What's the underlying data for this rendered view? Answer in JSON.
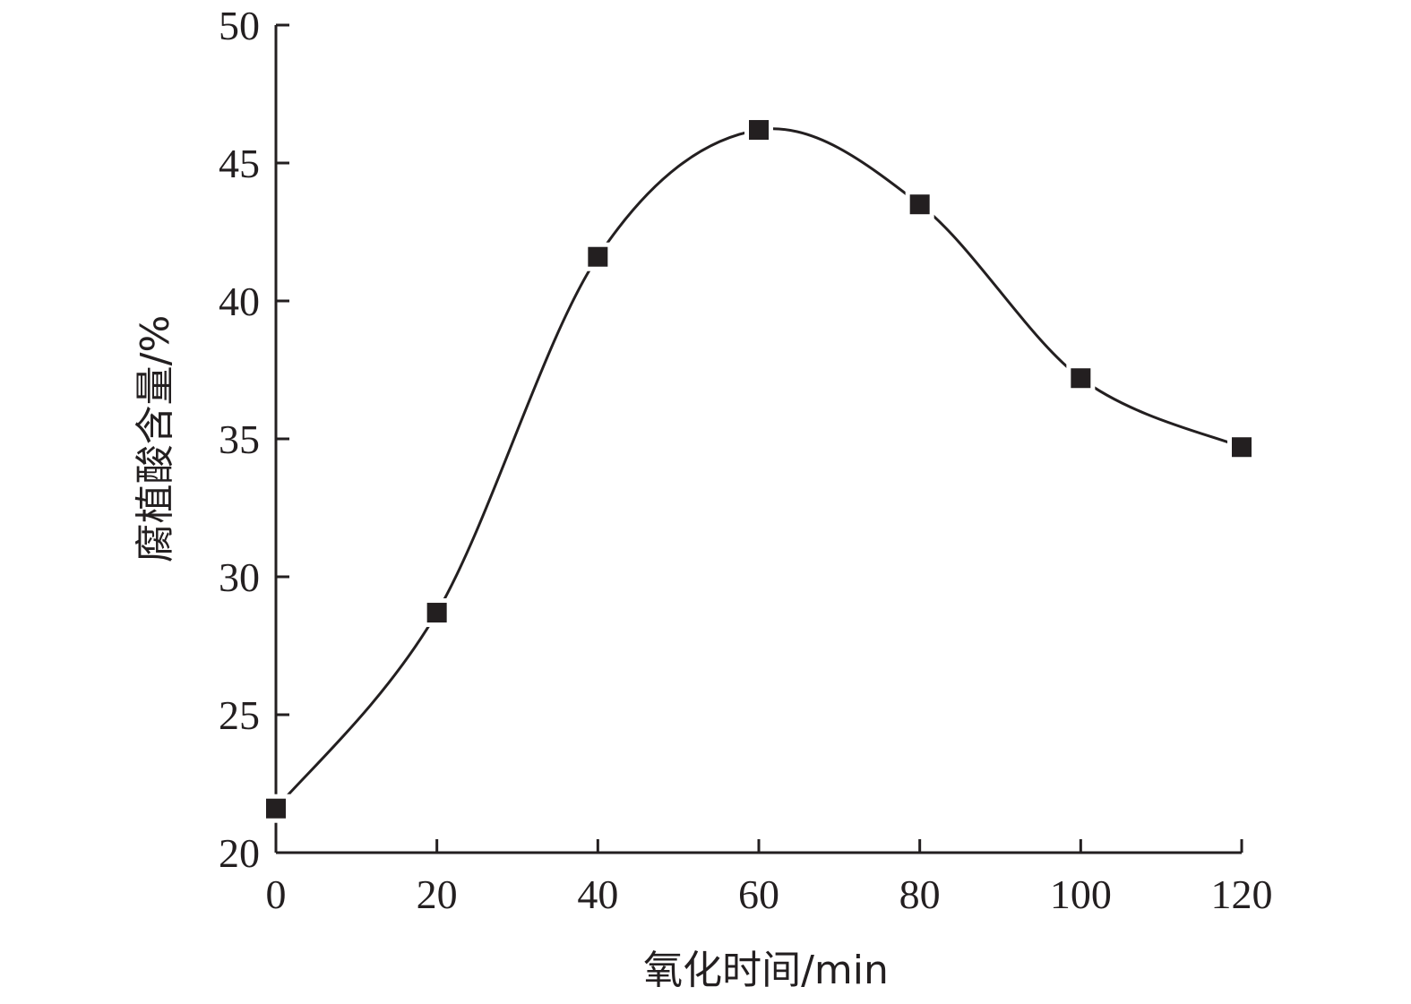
{
  "chart_data": {
    "type": "line",
    "title": "",
    "xlabel": "氧化时间/min",
    "ylabel": "腐植酸含量/%",
    "xlim": [
      0,
      120
    ],
    "ylim": [
      20,
      50
    ],
    "xticks": [
      "0",
      "20",
      "40",
      "60",
      "80",
      "100",
      "120"
    ],
    "yticks": [
      "20",
      "25",
      "30",
      "35",
      "40",
      "45",
      "50"
    ],
    "grid": false,
    "marker": "square",
    "smooth": true,
    "color": "#231f20",
    "series": [
      {
        "x": [
          0,
          20,
          40,
          60,
          80,
          100,
          120
        ],
        "values": [
          21.6,
          28.7,
          41.6,
          46.2,
          43.5,
          37.2,
          34.7
        ]
      }
    ]
  }
}
